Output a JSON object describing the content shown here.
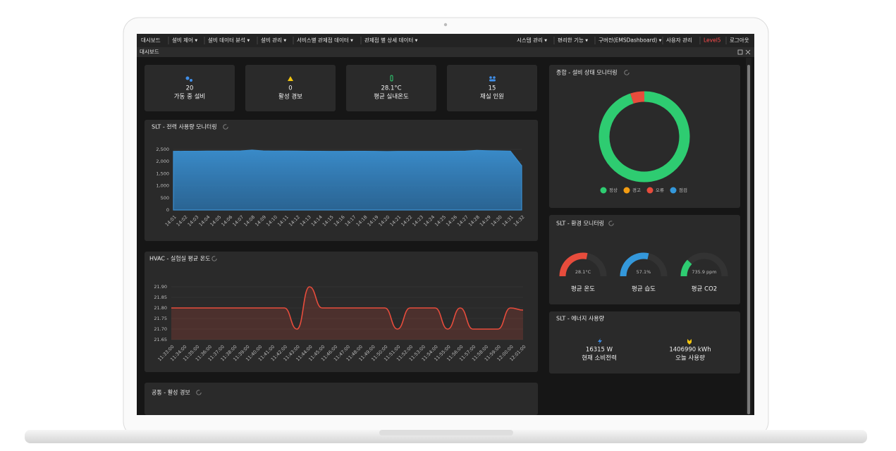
{
  "menu_left": [
    "대시보드",
    "설비 제어 ▾",
    "설비 데이터 분석 ▾",
    "설비 관리 ▾",
    "서비스별 관제점 데이터 ▾",
    "관제점 별 상세 데이터 ▾"
  ],
  "menu_right": [
    "시스템 관리 ▾",
    "편리한 기능 ▾",
    "구버전(EMSDashboard) ▾",
    "사용자 관리",
    "Level5",
    "로그아웃"
  ],
  "tab": "대시보드",
  "stats": [
    {
      "value": "20",
      "label": "가동 중 설비"
    },
    {
      "value": "0",
      "label": "활성 경보"
    },
    {
      "value": "28.1°C",
      "label": "평균 실내온도"
    },
    {
      "value": "15",
      "label": "재실 인원"
    }
  ],
  "chart_data": [
    {
      "type": "area",
      "title": "SLT - 전력 사용량 모니터링",
      "color": "#3a8fd0",
      "categories": [
        "14:01",
        "14:02",
        "14:03",
        "14:04",
        "14:05",
        "14:06",
        "14:07",
        "14:08",
        "14:09",
        "14:10",
        "14:11",
        "14:12",
        "14:13",
        "14:14",
        "14:15",
        "14:16",
        "14:17",
        "14:18",
        "14:19",
        "14:20",
        "14:21",
        "14:22",
        "14:23",
        "14:24",
        "14:25",
        "14:26",
        "14:27",
        "14:28",
        "14:29",
        "14:30",
        "14:31",
        "14:32"
      ],
      "values": [
        2420,
        2425,
        2425,
        2430,
        2430,
        2430,
        2440,
        2470,
        2440,
        2430,
        2435,
        2430,
        2425,
        2425,
        2420,
        2420,
        2425,
        2425,
        2420,
        2415,
        2420,
        2420,
        2420,
        2420,
        2420,
        2425,
        2430,
        2460,
        2445,
        2440,
        2430,
        1830
      ],
      "ylim": [
        0,
        2500
      ],
      "yticks": [
        0,
        500,
        {
          "value": 1000,
          "label": "1,000"
        },
        {
          "value": 1500,
          "label": "1,500"
        },
        {
          "value": 2000,
          "label": "2,000"
        },
        {
          "value": 2500,
          "label": "2,500"
        }
      ],
      "grid": true
    },
    {
      "type": "line",
      "title": "HVAC - 실험실 평균 온도",
      "color": "#e74c3c",
      "categories": [
        "11:33:00",
        "11:34:00",
        "11:35:00",
        "11:36:00",
        "11:37:00",
        "11:38:00",
        "11:39:00",
        "11:40:00",
        "11:41:00",
        "11:42:00",
        "11:43:00",
        "11:44:00",
        "11:45:00",
        "11:46:00",
        "11:47:00",
        "11:48:00",
        "11:49:00",
        "11:50:00",
        "11:51:00",
        "11:52:00",
        "11:53:00",
        "11:54:00",
        "11:55:00",
        "11:56:00",
        "11:57:00",
        "11:58:00",
        "11:59:00",
        "12:00:00",
        "12:01:00"
      ],
      "values": [
        21.8,
        21.8,
        21.8,
        21.8,
        21.8,
        21.8,
        21.8,
        21.8,
        21.8,
        21.8,
        21.7,
        21.9,
        21.8,
        21.8,
        21.8,
        21.8,
        21.8,
        21.8,
        21.7,
        21.8,
        21.8,
        21.8,
        21.7,
        21.8,
        21.7,
        21.7,
        21.7,
        21.8,
        21.79
      ],
      "ylim": [
        21.65,
        21.9
      ],
      "yticks": [
        21.65,
        {
          "value": 21.7,
          "label": "21.70"
        },
        21.75,
        {
          "value": 21.8,
          "label": "21.80"
        },
        21.85,
        {
          "value": 21.9,
          "label": "21.90"
        }
      ],
      "grid": true
    },
    {
      "type": "pie",
      "title": "종합 - 설비 상태 모니터링",
      "categories": [
        "정상",
        "경고",
        "오류",
        "점검"
      ],
      "values": [
        19,
        0,
        1,
        0
      ],
      "colors": [
        "#2ecc71",
        "#f39c12",
        "#e74c3c",
        "#3498db"
      ]
    },
    {
      "type": "gauge",
      "title": "SLT - 환경 모니터링",
      "gauges": [
        {
          "name": "평균 온도",
          "value": 28.1,
          "value_label": "28.1°C",
          "range": [
            0,
            50
          ],
          "color": "#e74c3c"
        },
        {
          "name": "평균 습도",
          "value": 57.1,
          "value_label": "57.1%",
          "range": [
            0,
            100
          ],
          "color": "#3498db"
        },
        {
          "name": "평균 CO2",
          "value": 735.9,
          "value_label": "735.9 ppm",
          "range": [
            0,
            3000
          ],
          "color": "#2ecc71"
        }
      ]
    }
  ],
  "energy": {
    "title": "SLT - 에너지 사용량",
    "items": [
      {
        "value": "16315 W",
        "label": "현재 소비전력"
      },
      {
        "value": "1406990 kWh",
        "label": "오늘 사용량"
      }
    ]
  },
  "alarms": {
    "title": "공통 - 활성 경보"
  }
}
